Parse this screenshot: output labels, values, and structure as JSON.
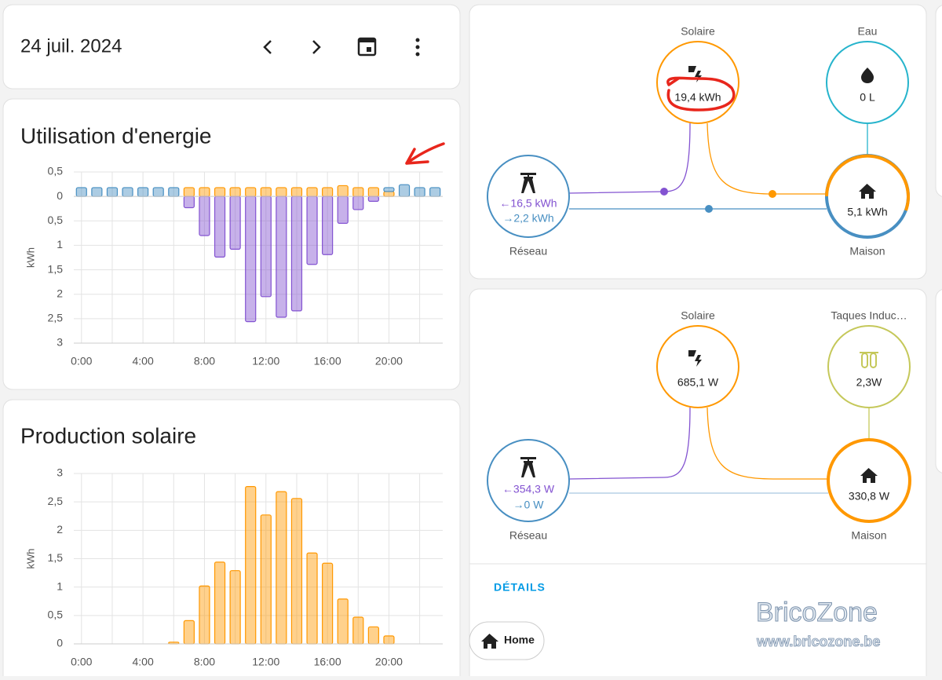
{
  "header": {
    "date": "24 juil. 2024"
  },
  "chart_data": [
    {
      "type": "bar",
      "title": "Utilisation d'energie",
      "y_label": "kWh",
      "stacked": true,
      "grid": true,
      "categories": [
        "0:00",
        null,
        null,
        null,
        "4:00",
        null,
        null,
        null,
        "8:00",
        null,
        null,
        null,
        "12:00",
        null,
        null,
        null,
        "16:00",
        null,
        null,
        null,
        "20:00",
        null,
        null,
        null
      ],
      "series": [
        {
          "color": "#ff9800",
          "values": [
            0,
            0,
            0,
            0,
            0,
            0,
            0,
            0.18,
            0.18,
            0.18,
            0.18,
            0.18,
            0.18,
            0.18,
            0.18,
            0.18,
            0.18,
            0.22,
            0.18,
            0.18,
            0.1,
            0,
            0,
            0
          ]
        },
        {
          "color": "#488fc2",
          "values": [
            0.18,
            0.18,
            0.18,
            0.18,
            0.18,
            0.18,
            0.18,
            0,
            0,
            0,
            0,
            0,
            0,
            0,
            0,
            0,
            0,
            0,
            0,
            0,
            0.08,
            0.24,
            0.18,
            0.18
          ]
        },
        {
          "color": "#8353d1",
          "values": [
            0,
            0,
            0,
            0,
            0,
            0,
            0,
            -0.23,
            -0.8,
            -1.24,
            -1.08,
            -2.56,
            -2.05,
            -2.47,
            -2.34,
            -1.39,
            -1.19,
            -0.55,
            -0.27,
            -0.1,
            0,
            0,
            0,
            0
          ]
        }
      ],
      "ylim": [
        -3,
        0.5
      ],
      "yticks": [
        {
          "value": 0.5,
          "label": "0,5"
        },
        0,
        {
          "value": -0.5,
          "label": "0,5"
        },
        {
          "value": -1,
          "label": "1"
        },
        {
          "value": -1.5,
          "label": "1,5"
        },
        {
          "value": -2,
          "label": "2"
        },
        {
          "value": -2.5,
          "label": "2,5"
        },
        {
          "value": -3,
          "label": "3"
        }
      ]
    },
    {
      "type": "bar",
      "title": "Production solaire",
      "y_label": "kWh",
      "stacked": true,
      "grid": true,
      "categories": [
        "0:00",
        null,
        null,
        null,
        "4:00",
        null,
        null,
        null,
        "8:00",
        null,
        null,
        null,
        "12:00",
        null,
        null,
        null,
        "16:00",
        null,
        null,
        null,
        "20:00",
        null,
        null,
        null
      ],
      "series": [
        {
          "color": "#ff9800",
          "values": [
            0,
            0,
            0,
            0,
            0,
            0,
            0.03,
            0.41,
            1.02,
            1.44,
            1.29,
            2.77,
            2.27,
            2.68,
            2.56,
            1.6,
            1.42,
            0.79,
            0.47,
            0.3,
            0.14,
            0,
            0,
            0
          ]
        }
      ],
      "ylim": [
        0,
        3
      ],
      "yticks": [
        0,
        {
          "value": 0.5,
          "label": "0,5"
        },
        1,
        {
          "value": 1.5,
          "label": "1,5"
        },
        2,
        {
          "value": 2.5,
          "label": "2,5"
        },
        3
      ]
    }
  ],
  "energy_flow": {
    "solar": {
      "label": "Solaire",
      "value": "19,4 kWh"
    },
    "water": {
      "label": "Eau",
      "value": "0 L"
    },
    "grid": {
      "label": "Réseau",
      "import": "←16,5 kWh",
      "export": "→2,2 kWh"
    },
    "home": {
      "label": "Maison",
      "value": "5,1 kWh"
    }
  },
  "power_flow": {
    "solar": {
      "label": "Solaire",
      "value": "685,1 W"
    },
    "device": {
      "label": "Taques Induc…",
      "value": "2,3W"
    },
    "grid": {
      "label": "Réseau",
      "import": "←354,3 W",
      "export": "→0 W"
    },
    "home": {
      "label": "Maison",
      "value": "330,8 W"
    }
  },
  "details": {
    "title": "DÉTAILS",
    "chip": "Home"
  },
  "watermark": {
    "name": "BricoZone",
    "url": "www.bricozone.be"
  }
}
